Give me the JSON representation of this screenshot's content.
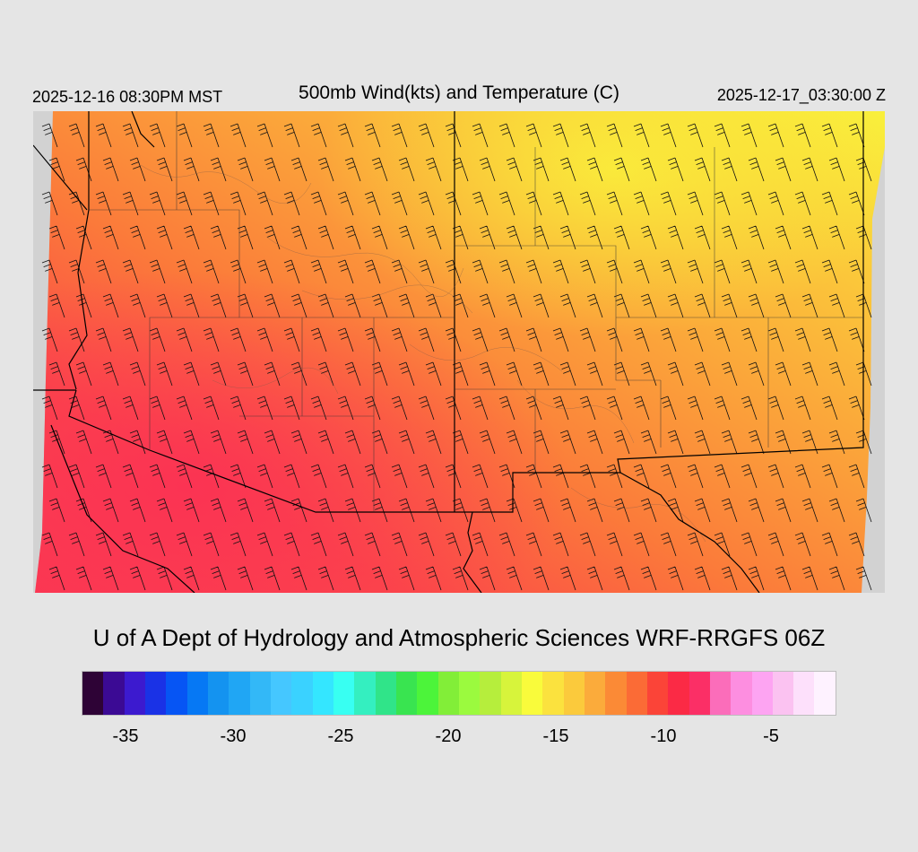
{
  "header": {
    "local_time": "2025-12-16 08:30PM MST",
    "title": "500mb Wind(kts) and Temperature (C)",
    "valid_time": "2025-12-17_03:30:00 Z"
  },
  "credit": "U of A Dept of Hydrology and Atmospheric Sciences WRF-RRGFS 06Z",
  "colorbar": {
    "colors": [
      "#2e0336",
      "#3b0a94",
      "#3c1acf",
      "#1a32e6",
      "#0655f4",
      "#0678f4",
      "#1493f0",
      "#20a6f4",
      "#33b8f7",
      "#45c7ff",
      "#3ad2ff",
      "#34e6ff",
      "#38fff2",
      "#34efc0",
      "#30e489",
      "#39e450",
      "#4cf43a",
      "#82ee38",
      "#9bfa3e",
      "#b6ee3c",
      "#d7f43b",
      "#f9fb3b",
      "#fbe23e",
      "#fbca3c",
      "#fbab3b",
      "#fb8a36",
      "#fb6b36",
      "#fb4438",
      "#fb2a45",
      "#fb2f66",
      "#fb6dba",
      "#fd8ee0",
      "#fda4f2",
      "#fbc2f1",
      "#fde0fb",
      "#fef2ff"
    ],
    "tick_labels": [
      "-35",
      "-30",
      "-25",
      "-20",
      "-15",
      "-10",
      "-5"
    ],
    "tick_values": [
      -35,
      -30,
      -25,
      -20,
      -15,
      -10,
      -5
    ],
    "range": [
      -37,
      -2
    ]
  },
  "map": {
    "field": "500mb temperature (C) with wind barbs (kts)",
    "temperature_colors": {
      "warm_southwest": "#fb4a48",
      "mid": "#fb8a36",
      "cool_northeast": "#f9e23e",
      "coldest_corner": "#f9fb3b"
    },
    "wind_barb_direction": "from northwest",
    "no_data_color": "#d2d2d2"
  }
}
